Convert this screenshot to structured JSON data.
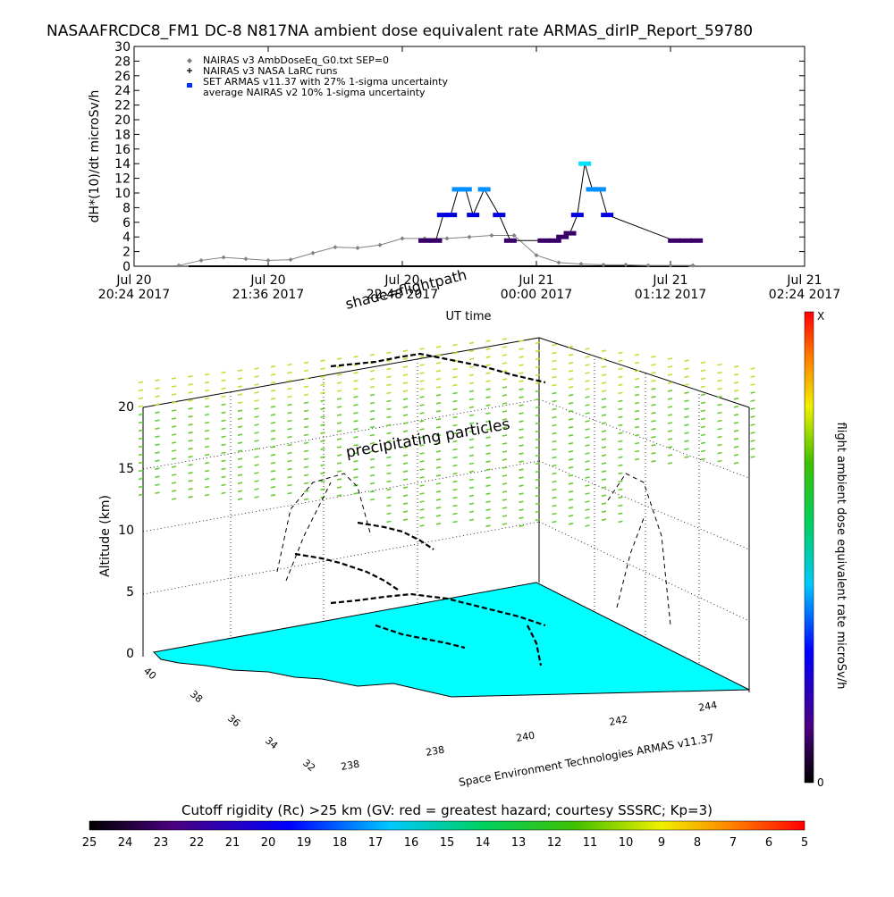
{
  "title": "NASAAFRCDC8_FM1 DC-8   N817NA ambient dose equivalent rate ARMAS_dirIP_Report_59780",
  "top_chart": {
    "ylabel": "dH*(10)/dt microSv/h",
    "xlabel": "UT time",
    "ylim": [
      0,
      30
    ],
    "yticks": [
      0,
      2,
      4,
      6,
      8,
      10,
      12,
      14,
      16,
      18,
      20,
      22,
      24,
      26,
      28,
      30
    ],
    "xticks": [
      {
        "l1": "Jul 20",
        "l2": "20:24 2017"
      },
      {
        "l1": "Jul 20",
        "l2": "21:36 2017"
      },
      {
        "l1": "Jul 20",
        "l2": "22:48 2017"
      },
      {
        "l1": "Jul 21",
        "l2": "00:00 2017"
      },
      {
        "l1": "Jul 21",
        "l2": "01:12 2017"
      },
      {
        "l1": "Jul 21",
        "l2": "02:24 2017"
      }
    ],
    "legend": [
      {
        "symbol": "diamond",
        "text": "NAIRAS v3 AmbDoseEq_G0.txt SEP=0"
      },
      {
        "symbol": "plus",
        "text": "NAIRAS v3 NASA LaRC runs"
      },
      {
        "symbol": "square",
        "text": "SET ARMAS v11.37 with 27% 1-sigma uncertainty"
      },
      {
        "symbol": "none",
        "text": "average NAIRAS v2 10% 1-sigma uncertainty"
      }
    ]
  },
  "chart_data": [
    {
      "type": "line",
      "title": "NASAAFRCDC8_FM1 DC-8   N817NA ambient dose equivalent rate ARMAS_dirIP_Report_59780",
      "xlabel": "UT time",
      "ylabel": "dH*(10)/dt microSv/h",
      "xlim": [
        "2017-07-20 20:24",
        "2017-07-21 02:24"
      ],
      "ylim": [
        0,
        30
      ],
      "series": [
        {
          "name": "NAIRAS v3 AmbDoseEq_G0.txt SEP=0",
          "x": [
            "2017-07-20 20:48",
            "2017-07-20 21:00",
            "2017-07-20 21:12",
            "2017-07-20 21:24",
            "2017-07-20 21:36",
            "2017-07-20 21:48",
            "2017-07-20 22:00",
            "2017-07-20 22:12",
            "2017-07-20 22:24",
            "2017-07-20 22:36",
            "2017-07-20 22:48",
            "2017-07-20 23:00",
            "2017-07-20 23:12",
            "2017-07-20 23:24",
            "2017-07-20 23:36",
            "2017-07-20 23:48",
            "2017-07-21 00:00",
            "2017-07-21 00:12",
            "2017-07-21 00:24",
            "2017-07-21 00:36",
            "2017-07-21 00:48",
            "2017-07-21 01:00",
            "2017-07-21 01:12",
            "2017-07-21 01:24"
          ],
          "y": [
            0.1,
            0.8,
            1.2,
            1.0,
            0.8,
            0.9,
            1.8,
            2.6,
            2.5,
            2.9,
            3.8,
            3.8,
            3.8,
            4.0,
            4.2,
            4.2,
            1.5,
            0.5,
            0.3,
            0.2,
            0.2,
            0.1,
            0.1,
            0.1
          ]
        },
        {
          "name": "SET ARMAS v11.37 with 27% 1-sigma uncertainty",
          "x": [
            "2017-07-20 23:00",
            "2017-07-20 23:06",
            "2017-07-20 23:10",
            "2017-07-20 23:14",
            "2017-07-20 23:18",
            "2017-07-20 23:22",
            "2017-07-20 23:26",
            "2017-07-20 23:32",
            "2017-07-20 23:40",
            "2017-07-20 23:46",
            "2017-07-21 00:04",
            "2017-07-21 00:10",
            "2017-07-21 00:14",
            "2017-07-21 00:18",
            "2017-07-21 00:22",
            "2017-07-21 00:26",
            "2017-07-21 00:30",
            "2017-07-21 00:34",
            "2017-07-21 00:38",
            "2017-07-21 01:14",
            "2017-07-21 01:20",
            "2017-07-21 01:26"
          ],
          "y": [
            3.5,
            3.5,
            7,
            7,
            10.5,
            10.5,
            7,
            10.5,
            7,
            3.5,
            3.5,
            3.5,
            4,
            4.5,
            7,
            14,
            10.5,
            10.5,
            7,
            3.5,
            3.5,
            3.5
          ]
        }
      ]
    },
    {
      "type": "heatmap",
      "title": "shade=flightpath",
      "zlabel": "Altitude (km)",
      "zlim": [
        0,
        20
      ],
      "zticks": [
        0,
        5,
        10,
        15,
        20
      ],
      "lat_ticks": [
        32,
        34,
        36,
        38,
        40
      ],
      "lon_ticks": [
        238,
        240,
        242,
        244
      ],
      "annotation": "precipitating particles",
      "credit": "Space Environment Technologies ARMAS v11.37",
      "colorbar_label": "flight ambient dose equivalent rate microSv/h",
      "colorbar_range": [
        "0",
        "X"
      ]
    },
    {
      "type": "heatmap",
      "title": "Cutoff rigidity (Rc) >25 km (GV: red = greatest hazard; courtesy SSSRC; Kp=3)",
      "colorbar_ticks": [
        25,
        24,
        23,
        22,
        21,
        20,
        19,
        18,
        17,
        16,
        15,
        14,
        13,
        12,
        11,
        10,
        9,
        8,
        7,
        6,
        5
      ]
    }
  ],
  "panel3d": {
    "title_a": "shade=flightpath",
    "zlabel": "Altitude (km)",
    "zticks": [
      "0",
      "5",
      "10",
      "15",
      "20"
    ],
    "lat_ticks": [
      "40",
      "38",
      "36",
      "34",
      "32"
    ],
    "lon_ticks": [
      "238",
      "240",
      "242",
      "244"
    ],
    "annotation": "precipitating particles",
    "credit": "Space Environment Technologies ARMAS v11.37"
  },
  "colorbar_v": {
    "label": "flight ambient dose equivalent rate microSv/h",
    "top": "X",
    "bottom": "0"
  },
  "colorbar_h": {
    "title": "Cutoff rigidity (Rc) >25 km (GV: red = greatest hazard; courtesy SSSRC; Kp=3)",
    "ticks": [
      "25",
      "24",
      "23",
      "22",
      "21",
      "20",
      "19",
      "18",
      "17",
      "16",
      "15",
      "14",
      "13",
      "12",
      "11",
      "10",
      "9",
      "8",
      "7",
      "6",
      "5"
    ]
  },
  "colors": {
    "land": "#00ffff",
    "nairas": "#808080",
    "armas_low": "#3a006a",
    "armas_mid": "#0000e0",
    "armas_high": "#0090ff",
    "armas_peak": "#00e0ff",
    "rain": "#66cc33",
    "rain_top": "#c8dc30"
  }
}
